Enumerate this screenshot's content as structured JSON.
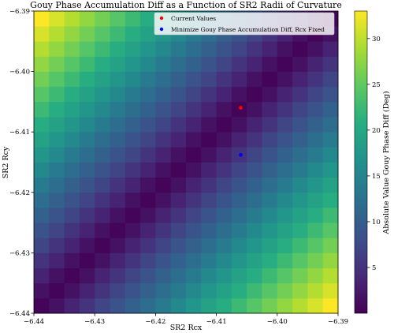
{
  "chart_data": {
    "type": "heatmap",
    "title": "Gouy Phase Accumulation Diff as a Function of SR2 Radii of Curvature",
    "xlabel": "SR2 Rcx",
    "ylabel": "SR2 Rcy",
    "xlim": [
      -6.44,
      -6.39
    ],
    "ylim": [
      -6.44,
      -6.39
    ],
    "x_ticks": [
      -6.44,
      -6.43,
      -6.42,
      -6.41,
      -6.4,
      -6.39
    ],
    "x_tick_labels": [
      "−6.44",
      "−6.43",
      "−6.42",
      "−6.41",
      "−6.40",
      "−6.39"
    ],
    "y_ticks": [
      -6.44,
      -6.43,
      -6.42,
      -6.41,
      -6.4,
      -6.39
    ],
    "y_tick_labels": [
      "−6.44",
      "−6.43",
      "−6.42",
      "−6.41",
      "−6.40",
      "−6.39"
    ],
    "grid": {
      "nx": 20,
      "ny": 20,
      "description": "value = |(Rcx - Rcy) * scale|, minimum along the Rcx = Rcy diagonal",
      "value_min": 0,
      "value_max": 33
    },
    "colorbar": {
      "label": "Absolute Value Gouy Phase Diff (Deg)",
      "ticks": [
        5,
        10,
        15,
        20,
        25,
        30
      ],
      "tick_labels": [
        "5",
        "10",
        "15",
        "20",
        "25",
        "30"
      ],
      "range": [
        0,
        33
      ],
      "colormap": "viridis"
    },
    "points": [
      {
        "name": "Current Values",
        "x": -6.406,
        "y": -6.406,
        "color": "#ff0000"
      },
      {
        "name": "Minimize Gouy Phase Accumulation Diff, Rcx Fixed",
        "x": -6.406,
        "y": -6.4138,
        "color": "#0000ff"
      }
    ],
    "legend_position": "top-right"
  }
}
